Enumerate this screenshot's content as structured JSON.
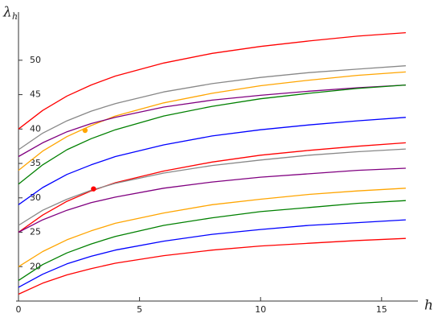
{
  "chart_data": {
    "type": "line",
    "xlabel": "h",
    "ylabel": "λ",
    "ylabel_subscript": "h",
    "x": [
      0,
      1,
      2,
      3,
      4,
      6,
      8,
      10,
      12,
      14,
      16
    ],
    "series": [
      {
        "color": "#ff0000",
        "values": [
          40,
          42.7,
          44.8,
          46.4,
          47.7,
          49.6,
          51.0,
          52.0,
          52.8,
          53.5,
          54.0
        ]
      },
      {
        "color": "#888888",
        "values": [
          37,
          39.4,
          41.2,
          42.6,
          43.7,
          45.4,
          46.6,
          47.5,
          48.2,
          48.7,
          49.2
        ]
      },
      {
        "color": "#ffa500",
        "values": [
          34,
          36.8,
          38.9,
          40.5,
          41.9,
          43.8,
          45.2,
          46.3,
          47.1,
          47.8,
          48.3
        ]
      },
      {
        "color": "#800080",
        "values": [
          36,
          38.0,
          39.6,
          40.8,
          41.7,
          43.2,
          44.2,
          44.9,
          45.5,
          46.0,
          46.4
        ]
      },
      {
        "color": "#008000",
        "values": [
          32,
          34.8,
          37.0,
          38.6,
          39.9,
          41.9,
          43.3,
          44.4,
          45.2,
          45.9,
          46.4
        ]
      },
      {
        "color": "#0000ff",
        "values": [
          29,
          31.5,
          33.4,
          34.8,
          36.0,
          37.7,
          39.0,
          39.9,
          40.6,
          41.2,
          41.7
        ]
      },
      {
        "color": "#ff0000",
        "values": [
          25,
          27.5,
          29.5,
          31.0,
          32.2,
          33.9,
          35.2,
          36.2,
          36.9,
          37.5,
          38.0
        ]
      },
      {
        "color": "#888888",
        "values": [
          26,
          28.2,
          29.8,
          31.1,
          32.1,
          33.6,
          34.7,
          35.5,
          36.2,
          36.7,
          37.1
        ]
      },
      {
        "color": "#800080",
        "values": [
          25,
          26.8,
          28.2,
          29.3,
          30.1,
          31.4,
          32.3,
          33.0,
          33.5,
          34.0,
          34.3
        ]
      },
      {
        "color": "#ffa500",
        "values": [
          20,
          22.2,
          23.9,
          25.2,
          26.3,
          27.8,
          29.0,
          29.8,
          30.5,
          31.0,
          31.4
        ]
      },
      {
        "color": "#008000",
        "values": [
          18,
          20.3,
          22.0,
          23.3,
          24.4,
          26.0,
          27.1,
          28.0,
          28.6,
          29.2,
          29.6
        ]
      },
      {
        "color": "#0000ff",
        "values": [
          17,
          18.9,
          20.4,
          21.5,
          22.4,
          23.7,
          24.7,
          25.4,
          26.0,
          26.4,
          26.8
        ]
      },
      {
        "color": "#ff0000",
        "values": [
          16,
          17.6,
          18.8,
          19.7,
          20.5,
          21.6,
          22.4,
          23.0,
          23.4,
          23.8,
          24.1
        ]
      }
    ],
    "points": [
      {
        "x": 2.75,
        "y": 39.8,
        "color": "#ffa500"
      },
      {
        "x": 3.1,
        "y": 31.3,
        "color": "#ff0000"
      }
    ],
    "xlim": [
      -0.1,
      16.5
    ],
    "ylim": [
      15,
      57
    ],
    "xticks": [
      0,
      5,
      10,
      15
    ],
    "yticks": [
      20,
      25,
      30,
      35,
      40,
      45,
      50
    ]
  }
}
